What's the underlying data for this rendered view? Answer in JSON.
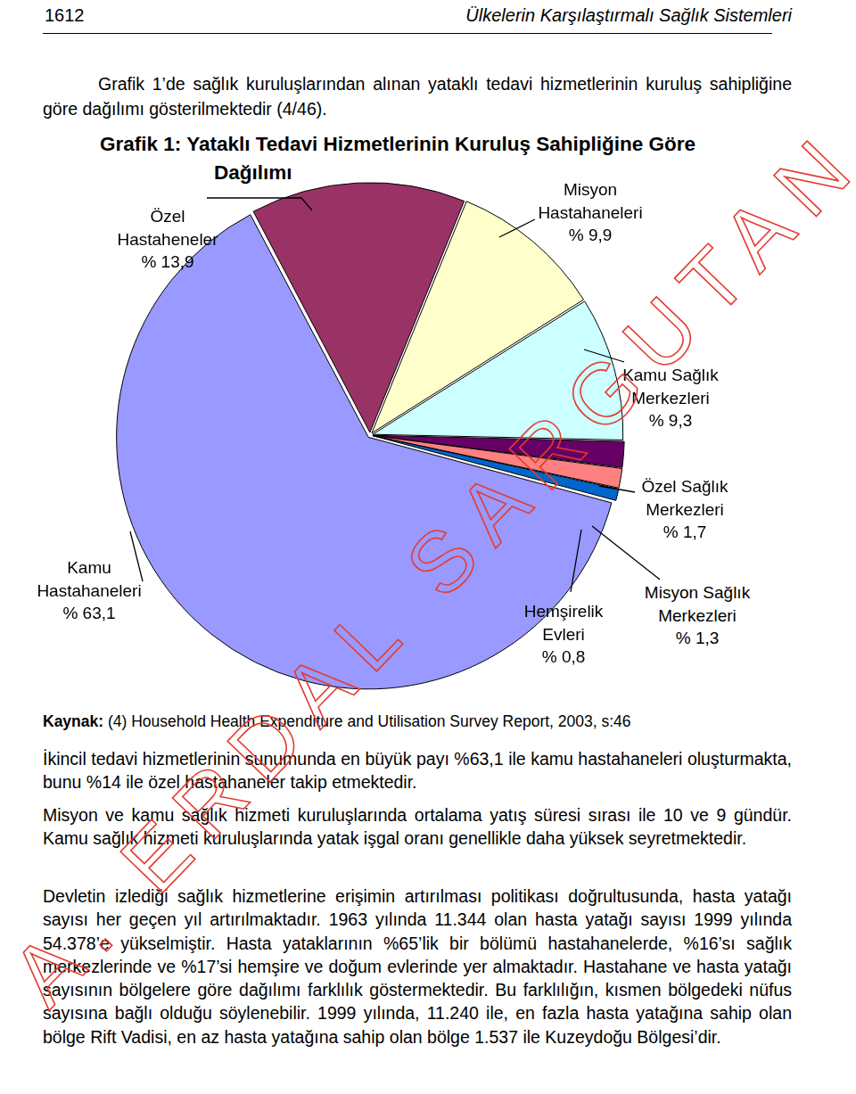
{
  "header": {
    "page_number": "1612",
    "title": "Ülkelerin Karşılaştırmalı Sağlık Sistemleri"
  },
  "intro": "Grafik 1’de sağlık kuruluşlarından alınan yataklı tedavi hizmetlerinin kuruluş sahipliğine göre dağılımı gösterilmektedir (4/46).",
  "chart_data": {
    "type": "pie",
    "title": "Grafik 1: Yataklı Tedavi Hizmetlerinin Kuruluş Sahipliğine Göre Dağılımı",
    "categories": [
      "Kamu Hastahaneleri",
      "Özel Hastaheneler",
      "Misyon Hastahaneleri",
      "Kamu Sağlık Merkezleri",
      "Özel Sağlık Merkezleri",
      "Misyon Sağlık Merkezleri",
      "Hemşirelik Evleri"
    ],
    "values": [
      63.1,
      13.9,
      9.9,
      9.3,
      1.7,
      1.3,
      0.8
    ],
    "value_labels": [
      "% 63,1",
      "% 13,9",
      "% 9,9",
      "% 9,3",
      "% 1,7",
      "% 1,3",
      "% 0,8"
    ],
    "colors": [
      "#9999ff",
      "#993366",
      "#ffffcc",
      "#ccffff",
      "#660066",
      "#ff8080",
      "#0066cc"
    ],
    "data_labels": true
  },
  "source": {
    "label": "Kaynak:",
    "text": "(4) Household Health Expenditure and Utilisation Survey Report, 2003, s:46"
  },
  "paragraphs": [
    "İkincil tedavi hizmetlerinin sunumunda en büyük payı %63,1 ile kamu hastahaneleri oluşturmakta, bunu %14 ile özel hastahaneler takip etmektedir.",
    "Misyon ve kamu sağlık hizmeti kuruluşlarında ortalama yatış süresi sırası ile 10 ve 9 gündür. Kamu sağlık hizmeti kuruluşlarında yatak işgal oranı genellikle daha yüksek seyretmektedir.",
    "Devletin izlediği sağlık hizmetlerine erişimin artırılması politikası doğrultusunda, hasta yatağı sayısı her geçen yıl artırılmaktadır. 1963 yılında 11.344 olan hasta yatağı sayısı 1999 yılında 54.378’e yükselmiştir. Hasta yataklarının %65’lik bir bölümü hastahanelerde, %16’sı sağlık merkezlerinde ve %17’si hemşire ve doğum evlerinde yer almaktadır. Hastahane ve hasta yatağı sayısının bölgelere göre dağılımı farklılık göstermektedir. Bu farklılığın, kısmen bölgedeki nüfus sayısına bağlı olduğu söylenebilir. 1999 yılında, 11.240 ile, en fazla hasta yatağına sahip olan bölge Rift Vadisi, en az hasta yatağına sahip olan bölge 1.537 ile Kuzeydoğu Bölgesi’dir."
  ],
  "watermark": "A. ERDAL SARGUTAN"
}
